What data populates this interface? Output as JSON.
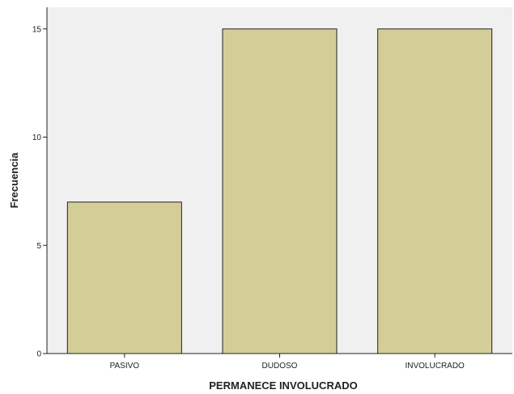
{
  "chart_data": {
    "type": "bar",
    "categories": [
      "PASIVO",
      "DUDOSO",
      "INVOLUCRADO"
    ],
    "values": [
      7,
      15,
      15
    ],
    "title": "",
    "xlabel": "PERMANECE INVOLUCRADO",
    "ylabel": "Frecuencia",
    "ylim": [
      0,
      16
    ],
    "yticks": [
      0,
      5,
      10,
      15
    ],
    "grid": false,
    "colors": {
      "bar_fill": "#d3ce98",
      "bar_stroke": "#222222",
      "plot_background": "#f0f0f0"
    }
  }
}
